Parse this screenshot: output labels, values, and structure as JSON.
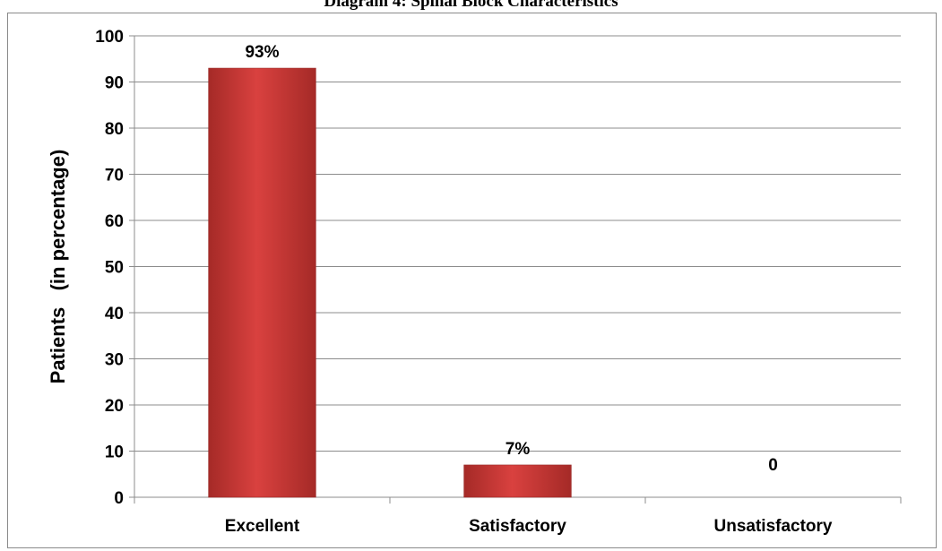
{
  "chart_data": {
    "type": "bar",
    "title": "Diagram 4: Spinal Block Characteristics",
    "xlabel": "",
    "ylabel": "Patients   (in percentage)",
    "categories": [
      "Excellent",
      "Satisfactory",
      "Unsatisfactory"
    ],
    "values": [
      93,
      7,
      0
    ],
    "data_labels": [
      "93%",
      "7%",
      "0"
    ],
    "ylim": [
      0,
      100
    ],
    "yticks": [
      0,
      10,
      20,
      30,
      40,
      50,
      60,
      70,
      80,
      90,
      100
    ],
    "grid": true,
    "legend": "none",
    "bar_color": "#d9413f",
    "bar_color_dark": "#a52a27"
  }
}
